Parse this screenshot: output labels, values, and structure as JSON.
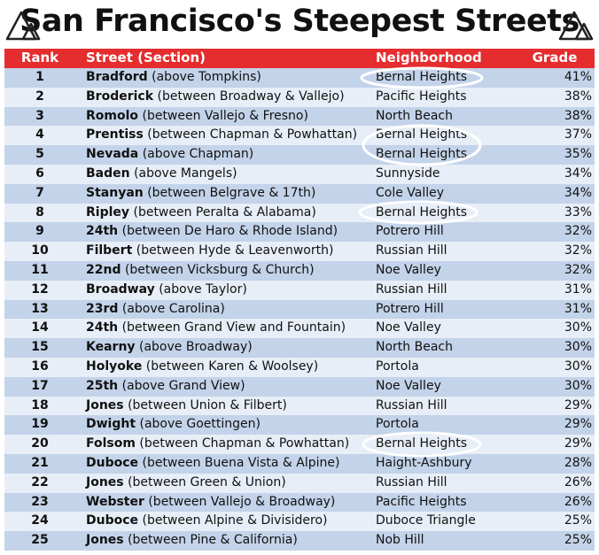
{
  "title": "San Francisco's Steepest Streets",
  "table": {
    "header": [
      "Rank",
      "Street (Section)",
      "Neighborhood",
      "Grade"
    ],
    "rows": [
      {
        "rank": 1,
        "street": "Bradford",
        "section": "(above Tompkins)",
        "neighborhood": "Bernal Heights",
        "grade": "41%"
      },
      {
        "rank": 2,
        "street": "Broderick",
        "section": "(between Broadway & Vallejo)",
        "neighborhood": "Pacific Heights",
        "grade": "38%"
      },
      {
        "rank": 3,
        "street": "Romolo",
        "section": "(between Vallejo & Fresno)",
        "neighborhood": "North Beach",
        "grade": "38%"
      },
      {
        "rank": 4,
        "street": "Prentiss",
        "section": "(between Chapman & Powhattan)",
        "neighborhood": "Bernal Heights",
        "grade": "37%"
      },
      {
        "rank": 5,
        "street": "Nevada",
        "section": "(above Chapman)",
        "neighborhood": "Bernal Heights",
        "grade": "35%"
      },
      {
        "rank": 6,
        "street": "Baden",
        "section": "(above Mangels)",
        "neighborhood": "Sunnyside",
        "grade": "34%"
      },
      {
        "rank": 7,
        "street": "Stanyan",
        "section": "(between Belgrave & 17th)",
        "neighborhood": "Cole Valley",
        "grade": "34%"
      },
      {
        "rank": 8,
        "street": "Ripley",
        "section": "(between Peralta & Alabama)",
        "neighborhood": "Bernal Heights",
        "grade": "33%"
      },
      {
        "rank": 9,
        "street": "24th",
        "section": "(between De Haro & Rhode Island)",
        "neighborhood": "Potrero Hill",
        "grade": "32%"
      },
      {
        "rank": 10,
        "street": "Filbert",
        "section": "(between Hyde & Leavenworth)",
        "neighborhood": "Russian Hill",
        "grade": "32%"
      },
      {
        "rank": 11,
        "street": "22nd",
        "section": "(between Vicksburg & Church)",
        "neighborhood": "Noe Valley",
        "grade": "32%"
      },
      {
        "rank": 12,
        "street": "Broadway",
        "section": "(above Taylor)",
        "neighborhood": "Russian Hill",
        "grade": "31%"
      },
      {
        "rank": 13,
        "street": "23rd",
        "section": "(above Carolina)",
        "neighborhood": "Potrero Hill",
        "grade": "31%"
      },
      {
        "rank": 14,
        "street": "24th",
        "section": "(between Grand View and Fountain)",
        "neighborhood": "Noe Valley",
        "grade": "30%"
      },
      {
        "rank": 15,
        "street": "Kearny",
        "section": "(above Broadway)",
        "neighborhood": "North Beach",
        "grade": "30%"
      },
      {
        "rank": 16,
        "street": "Holyoke",
        "section": "(between Karen & Woolsey)",
        "neighborhood": "Portola",
        "grade": "30%"
      },
      {
        "rank": 17,
        "street": "25th",
        "section": "(above Grand View)",
        "neighborhood": "Noe Valley",
        "grade": "30%"
      },
      {
        "rank": 18,
        "street": "Jones",
        "section": "(between Union & Filbert)",
        "neighborhood": "Russian Hill",
        "grade": "29%"
      },
      {
        "rank": 19,
        "street": "Dwight",
        "section": "(above Goettingen)",
        "neighborhood": "Portola",
        "grade": "29%"
      },
      {
        "rank": 20,
        "street": "Folsom",
        "section": "(between Chapman & Powhattan)",
        "neighborhood": "Bernal Heights",
        "grade": "29%"
      },
      {
        "rank": 21,
        "street": "Duboce",
        "section": "(between Buena Vista & Alpine)",
        "neighborhood": "Haight-Ashbury",
        "grade": "28%"
      },
      {
        "rank": 22,
        "street": "Jones",
        "section": "(between Green & Union)",
        "neighborhood": "Russian Hill",
        "grade": "26%"
      },
      {
        "rank": 23,
        "street": "Webster",
        "section": "(between Vallejo & Broadway)",
        "neighborhood": "Pacific Heights",
        "grade": "26%"
      },
      {
        "rank": 24,
        "street": "Duboce",
        "section": "(between Alpine & Divisidero)",
        "neighborhood": "Duboce Triangle",
        "grade": "25%"
      },
      {
        "rank": 25,
        "street": "Jones",
        "section": "(between Pine & California)",
        "neighborhood": "Nob Hill",
        "grade": "25%"
      }
    ]
  }
}
